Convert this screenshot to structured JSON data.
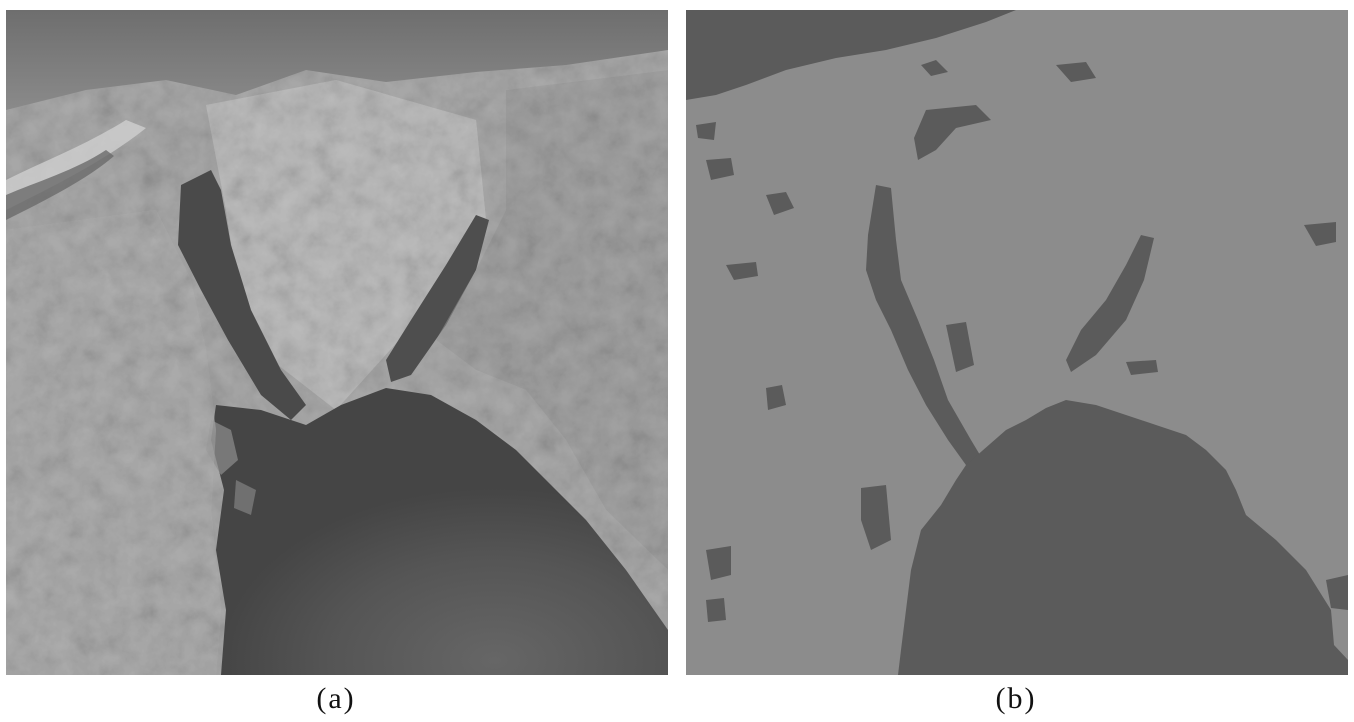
{
  "figure": {
    "panels": [
      {
        "caption": "(a)",
        "description_kind": "satellite-photo",
        "colors": {
          "land_light": "#b8b8b8",
          "land_mid": "#a2a2a2",
          "water_dark": "#4a4a4a",
          "water_deep": "#5a5a5a",
          "sea_north": "#7a7a7a"
        }
      },
      {
        "caption": "(b)",
        "description_kind": "segmentation-map",
        "colors": {
          "land": "#8c8c8c",
          "water": "#5b5b5b"
        }
      }
    ]
  }
}
